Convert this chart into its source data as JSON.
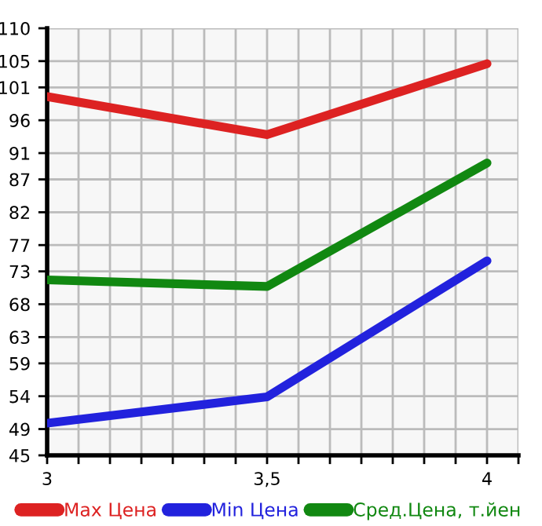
{
  "chart_data": {
    "type": "line",
    "x": [
      3,
      3.5,
      4
    ],
    "series": [
      {
        "name": "Max Цена",
        "color": "#dd2222",
        "values": [
          99.6,
          93.8,
          104.6
        ]
      },
      {
        "name": "Min Цена",
        "color": "#2222dd",
        "values": [
          49.9,
          53.9,
          74.6
        ]
      },
      {
        "name": "Сред.Цена, т.йен",
        "color": "#118811",
        "values": [
          71.7,
          70.7,
          89.5
        ]
      }
    ],
    "xlim": [
      3,
      4.0714
    ],
    "xticks": [
      3,
      {
        "value": 3.0714,
        "label": null
      },
      {
        "value": 3.1429,
        "label": null
      },
      {
        "value": 3.2143,
        "label": null
      },
      {
        "value": 3.2857,
        "label": null
      },
      {
        "value": 3.3571,
        "label": null
      },
      {
        "value": 3.4286,
        "label": null
      },
      {
        "value": 3.5,
        "label": "3,5"
      },
      {
        "value": 3.5714,
        "label": null
      },
      {
        "value": 3.6429,
        "label": null
      },
      {
        "value": 3.7143,
        "label": null
      },
      {
        "value": 3.7857,
        "label": null
      },
      {
        "value": 3.8571,
        "label": null
      },
      {
        "value": 3.9286,
        "label": null
      },
      4,
      {
        "value": 4.0714,
        "label": null
      }
    ],
    "ylim": [
      45,
      110
    ],
    "yticks": [
      45,
      49,
      54,
      59,
      63,
      68,
      73,
      77,
      82,
      87,
      91,
      96,
      101,
      105,
      110
    ],
    "grid": true,
    "legend": "bottom",
    "marker": "none",
    "line_style": "solid"
  }
}
